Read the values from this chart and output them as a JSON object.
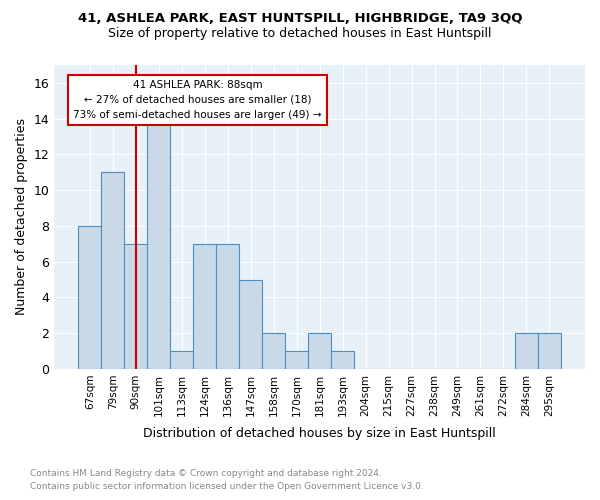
{
  "title1": "41, ASHLEA PARK, EAST HUNTSPILL, HIGHBRIDGE, TA9 3QQ",
  "title2": "Size of property relative to detached houses in East Huntspill",
  "xlabel": "Distribution of detached houses by size in East Huntspill",
  "ylabel": "Number of detached properties",
  "footnote1": "Contains HM Land Registry data © Crown copyright and database right 2024.",
  "footnote2": "Contains public sector information licensed under the Open Government Licence v3.0.",
  "bar_labels": [
    "67sqm",
    "79sqm",
    "90sqm",
    "101sqm",
    "113sqm",
    "124sqm",
    "136sqm",
    "147sqm",
    "158sqm",
    "170sqm",
    "181sqm",
    "193sqm",
    "204sqm",
    "215sqm",
    "227sqm",
    "238sqm",
    "249sqm",
    "261sqm",
    "272sqm",
    "284sqm",
    "295sqm"
  ],
  "bar_values": [
    8,
    11,
    7,
    14,
    1,
    7,
    7,
    5,
    2,
    1,
    2,
    1,
    0,
    0,
    0,
    0,
    0,
    0,
    0,
    2,
    2
  ],
  "bar_color": "#c9d9e8",
  "bar_edge_color": "#4a90c4",
  "vline_x_index": 2,
  "vline_color": "#cc0000",
  "ylim": [
    0,
    17
  ],
  "yticks": [
    0,
    2,
    4,
    6,
    8,
    10,
    12,
    14,
    16
  ],
  "annotation_text_line1": "41 ASHLEA PARK: 88sqm",
  "annotation_text_line2": "← 27% of detached houses are smaller (18)",
  "annotation_text_line3": "73% of semi-detached houses are larger (49) →",
  "annotation_box_color": "#ffffff",
  "annotation_box_edge": "#cc0000",
  "background_color": "#e8f0f8",
  "footnote_color": "#888888"
}
